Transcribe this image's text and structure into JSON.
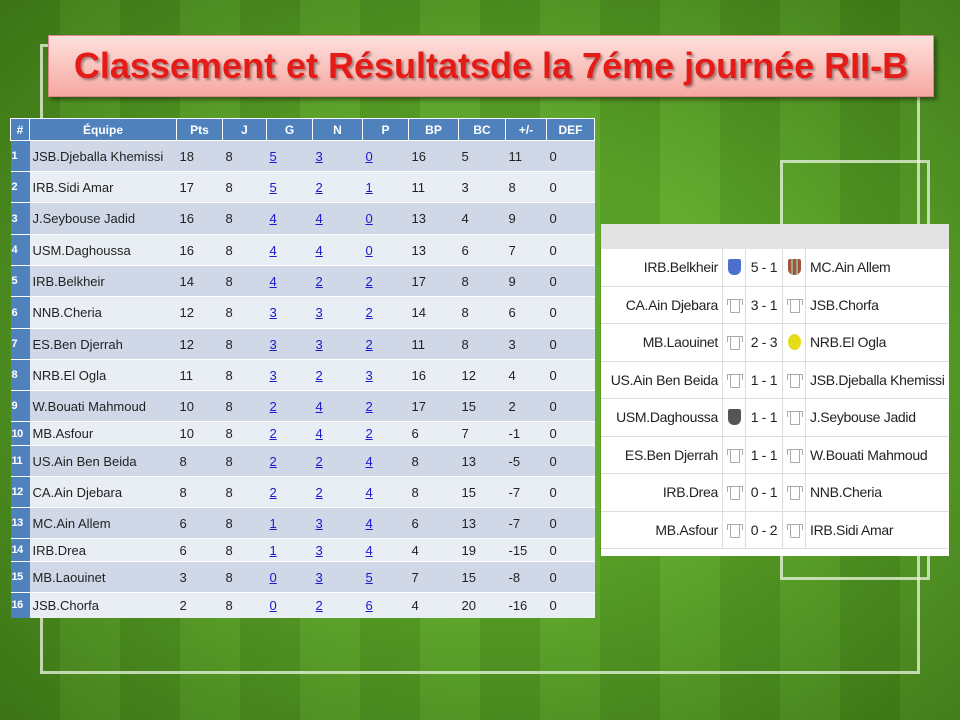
{
  "title": "Classement et Résultatsde la 7éme journée RII-B",
  "standings": {
    "headers": [
      "#",
      "Équipe",
      "Pts",
      "J",
      "G",
      "N",
      "P",
      "BP",
      "BC",
      "+/-",
      "DEF"
    ],
    "rows": [
      [
        "1",
        "JSB.Djeballa Khemissi",
        "18",
        "8",
        "5",
        "3",
        "0",
        "16",
        "5",
        "11",
        "0"
      ],
      [
        "2",
        "IRB.Sidi Amar",
        "17",
        "8",
        "5",
        "2",
        "1",
        "11",
        "3",
        "8",
        "0"
      ],
      [
        "3",
        "J.Seybouse Jadid",
        "16",
        "8",
        "4",
        "4",
        "0",
        "13",
        "4",
        "9",
        "0"
      ],
      [
        "4",
        "USM.Daghoussa",
        "16",
        "8",
        "4",
        "4",
        "0",
        "13",
        "6",
        "7",
        "0"
      ],
      [
        "5",
        "IRB.Belkheir",
        "14",
        "8",
        "4",
        "2",
        "2",
        "17",
        "8",
        "9",
        "0"
      ],
      [
        "6",
        "NNB.Cheria",
        "12",
        "8",
        "3",
        "3",
        "2",
        "14",
        "8",
        "6",
        "0"
      ],
      [
        "7",
        "ES.Ben Djerrah",
        "12",
        "8",
        "3",
        "3",
        "2",
        "11",
        "8",
        "3",
        "0"
      ],
      [
        "8",
        "NRB.El Ogla",
        "11",
        "8",
        "3",
        "2",
        "3",
        "16",
        "12",
        "4",
        "0"
      ],
      [
        "9",
        "W.Bouati Mahmoud",
        "10",
        "8",
        "2",
        "4",
        "2",
        "17",
        "15",
        "2",
        "0"
      ],
      [
        "10",
        "MB.Asfour",
        "10",
        "8",
        "2",
        "4",
        "2",
        "6",
        "7",
        "-1",
        "0"
      ],
      [
        "11",
        "US.Ain Ben Beida",
        "8",
        "8",
        "2",
        "2",
        "4",
        "8",
        "13",
        "-5",
        "0"
      ],
      [
        "12",
        "CA.Ain Djebara",
        "8",
        "8",
        "2",
        "2",
        "4",
        "8",
        "15",
        "-7",
        "0"
      ],
      [
        "13",
        "MC.Ain Allem",
        "6",
        "8",
        "1",
        "3",
        "4",
        "6",
        "13",
        "-7",
        "0"
      ],
      [
        "14",
        "IRB.Drea",
        "6",
        "8",
        "1",
        "3",
        "4",
        "4",
        "19",
        "-15",
        "0"
      ],
      [
        "15",
        "MB.Laouinet",
        "3",
        "8",
        "0",
        "3",
        "5",
        "7",
        "15",
        "-8",
        "0"
      ],
      [
        "16",
        "JSB.Chorfa",
        "2",
        "8",
        "0",
        "2",
        "6",
        "4",
        "20",
        "-16",
        "0"
      ]
    ]
  },
  "results": [
    {
      "home": "IRB.Belkheir",
      "home_icon": "blue-crest",
      "score": "5 - 1",
      "away": "MC.Ain Allem",
      "away_icon": "striped-crest"
    },
    {
      "home": "CA.Ain Djebara",
      "home_icon": "shirt",
      "score": "3 - 1",
      "away": "JSB.Chorfa",
      "away_icon": "shirt"
    },
    {
      "home": "MB.Laouinet",
      "home_icon": "shirt",
      "score": "2 - 3",
      "away": "NRB.El Ogla",
      "away_icon": "yellow-crest"
    },
    {
      "home": "US.Ain Ben Beida",
      "home_icon": "shirt",
      "score": "1 - 1",
      "away": "JSB.Djeballa Khemissi",
      "away_icon": "shirt"
    },
    {
      "home": "USM.Daghoussa",
      "home_icon": "dark-crest",
      "score": "1 - 1",
      "away": "J.Seybouse Jadid",
      "away_icon": "shirt"
    },
    {
      "home": "ES.Ben Djerrah",
      "home_icon": "shirt",
      "score": "1 - 1",
      "away": "W.Bouati Mahmoud",
      "away_icon": "shirt"
    },
    {
      "home": "IRB.Drea",
      "home_icon": "shirt",
      "score": "0 - 1",
      "away": "NNB.Cheria",
      "away_icon": "shirt"
    },
    {
      "home": "MB.Asfour",
      "home_icon": "shirt",
      "score": "0 - 2",
      "away": "IRB.Sidi Amar",
      "away_icon": "shirt"
    }
  ],
  "colors": {
    "header": "#4f81bd",
    "title": "#e41b17",
    "link": "#1a1acc"
  }
}
